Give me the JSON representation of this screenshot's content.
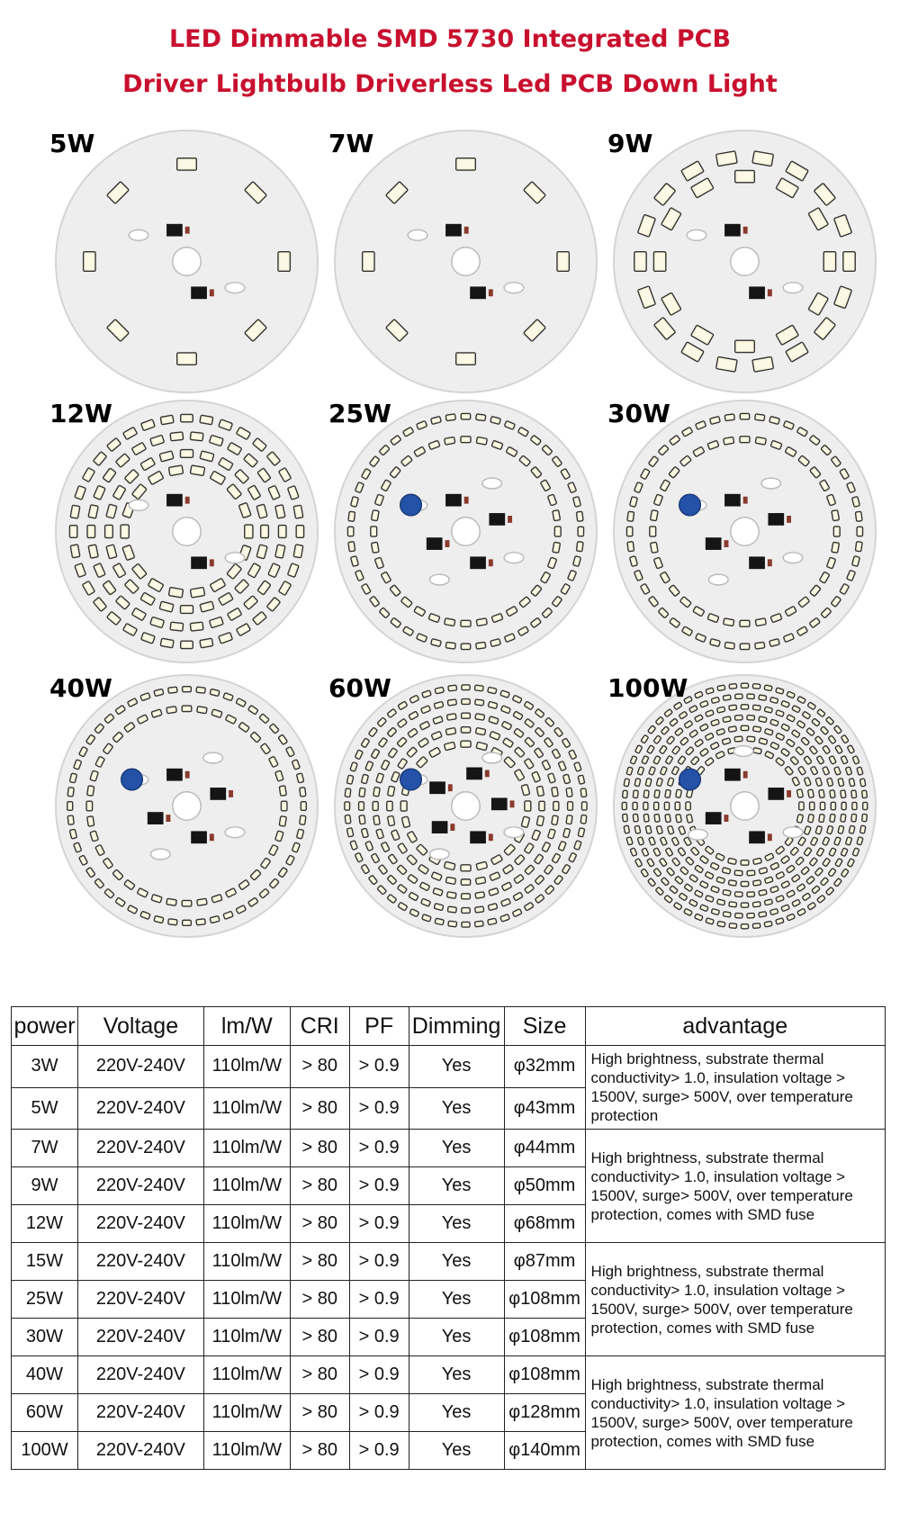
{
  "title_line1": "LED Dimmable SMD 5730 Integrated PCB",
  "title_line2": "Driver Lightbulb Driverless Led PCB Down Light",
  "boards": [
    {
      "label": "5W"
    },
    {
      "label": "7W"
    },
    {
      "label": "9W"
    },
    {
      "label": "12W"
    },
    {
      "label": "25W"
    },
    {
      "label": "30W"
    },
    {
      "label": "40W"
    },
    {
      "label": "60W"
    },
    {
      "label": "100W"
    }
  ],
  "table": {
    "headers": [
      "power",
      "Voltage",
      "lm/W",
      "CRI",
      "PF",
      "Dimming",
      "Size",
      "advantage"
    ],
    "rows": [
      [
        "3W",
        "220V-240V",
        "110lm/W",
        "> 80",
        "> 0.9",
        "Yes",
        "φ32mm"
      ],
      [
        "5W",
        "220V-240V",
        "110lm/W",
        "> 80",
        "> 0.9",
        "Yes",
        "φ43mm"
      ],
      [
        "7W",
        "220V-240V",
        "110lm/W",
        "> 80",
        "> 0.9",
        "Yes",
        "φ44mm"
      ],
      [
        "9W",
        "220V-240V",
        "110lm/W",
        "> 80",
        "> 0.9",
        "Yes",
        "φ50mm"
      ],
      [
        "12W",
        "220V-240V",
        "110lm/W",
        "> 80",
        "> 0.9",
        "Yes",
        "φ68mm"
      ],
      [
        "15W",
        "220V-240V",
        "110lm/W",
        "> 80",
        "> 0.9",
        "Yes",
        "φ87mm"
      ],
      [
        "25W",
        "220V-240V",
        "110lm/W",
        "> 80",
        "> 0.9",
        "Yes",
        "φ108mm"
      ],
      [
        "30W",
        "220V-240V",
        "110lm/W",
        "> 80",
        "> 0.9",
        "Yes",
        "φ108mm"
      ],
      [
        "40W",
        "220V-240V",
        "110lm/W",
        "> 80",
        "> 0.9",
        "Yes",
        "φ108mm"
      ],
      [
        "60W",
        "220V-240V",
        "110lm/W",
        "> 80",
        "> 0.9",
        "Yes",
        "φ128mm"
      ],
      [
        "100W",
        "220V-240V",
        "110lm/W",
        "> 80",
        "> 0.9",
        "Yes",
        "φ140mm"
      ]
    ],
    "advantages": [
      "High brightness, substrate thermal conductivity> 1.0, insulation voltage > 1500V, surge> 500V, over temperature protection",
      "High brightness, substrate thermal conductivity> 1.0, insulation voltage > 1500V, surge> 500V, over temperature protection, comes with SMD fuse",
      "High brightness, substrate thermal conductivity> 1.0, insulation voltage > 1500V, surge> 500V, over temperature protection, comes with SMD fuse",
      "High brightness, substrate thermal conductivity> 1.0, insulation voltage > 1500V, surge> 500V, over temperature protection, comes with SMD fuse"
    ]
  }
}
